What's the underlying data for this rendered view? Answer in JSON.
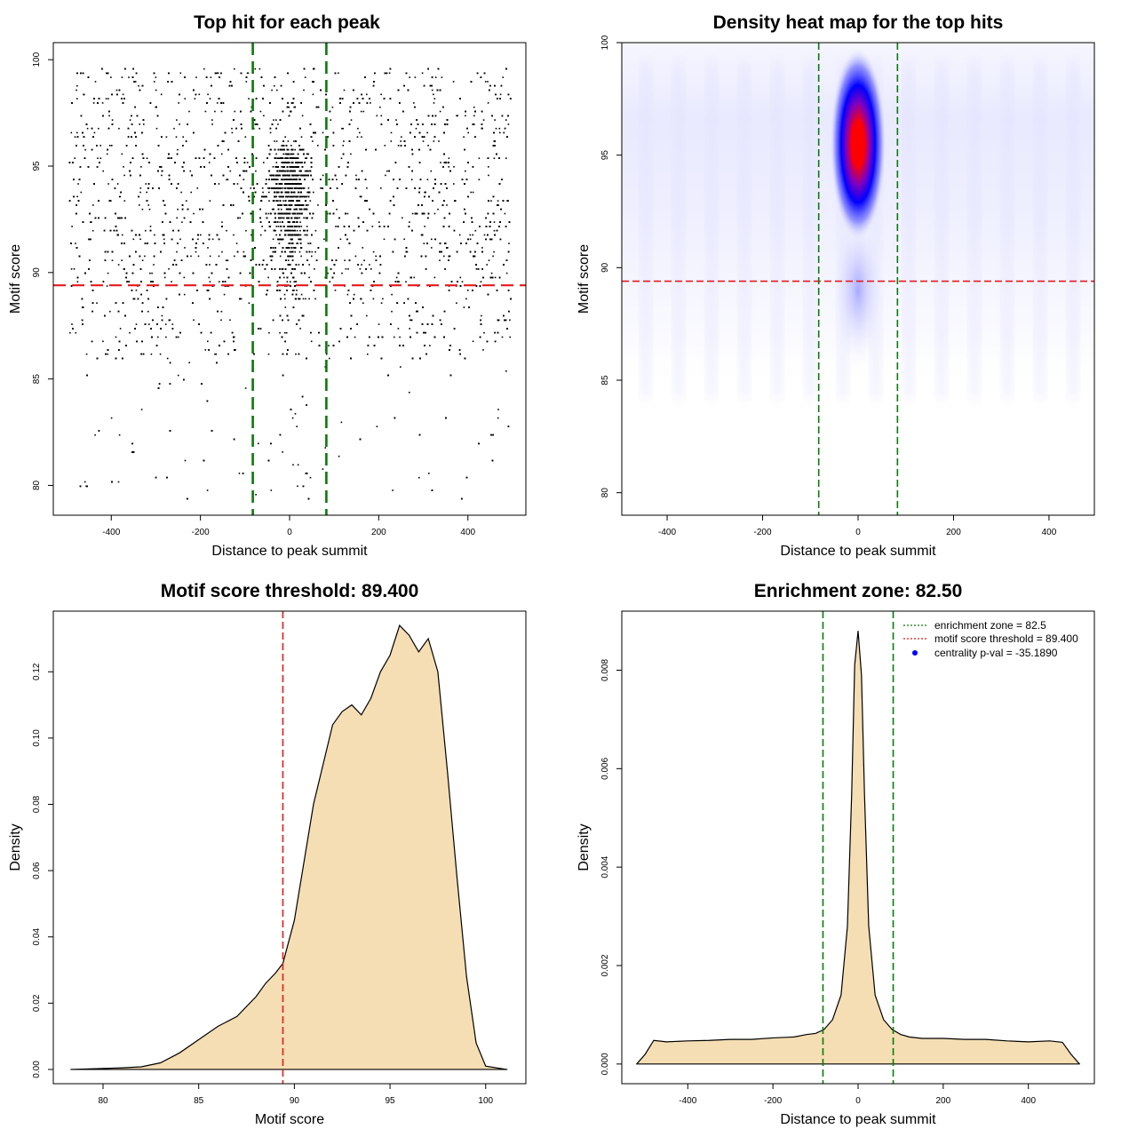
{
  "chart_data": [
    {
      "type": "scatter",
      "title": "Top hit for each peak",
      "xlabel": "Distance to peak summit",
      "ylabel": "Motif score",
      "xlim": [
        -530,
        530
      ],
      "ylim": [
        78.6,
        100.8
      ],
      "xticks": [
        -400,
        -200,
        0,
        200,
        400
      ],
      "yticks": [
        80,
        85,
        90,
        95,
        100
      ],
      "hlines": [
        {
          "y": 89.4,
          "color": "#e41a1c",
          "style": "dashed",
          "name": "motif score threshold"
        }
      ],
      "vlines": [
        {
          "x": -82.5,
          "color": "#0a7a0a",
          "style": "dashed"
        },
        {
          "x": 82.5,
          "color": "#0a7a0a",
          "style": "dashed"
        }
      ],
      "point_color": "#000000",
      "point_count_approx": 10000,
      "distribution": {
        "x_range": [
          -495,
          495
        ],
        "central_cluster_x_sd": 30,
        "score_peak": 95.5,
        "score_range": [
          79.3,
          100
        ]
      }
    },
    {
      "type": "heatmap",
      "title": "Density heat map for the top hits",
      "xlabel": "Distance to peak summit",
      "ylabel": "Motif score",
      "xlim": [
        -495,
        495
      ],
      "ylim": [
        79,
        100
      ],
      "xticks": [
        -400,
        -200,
        0,
        200,
        400
      ],
      "yticks": [
        80,
        85,
        90,
        95,
        100
      ],
      "colormap": [
        "#ffffff",
        "#0000ff",
        "#ff0000"
      ],
      "hot_spot": {
        "x": 0,
        "y": 95.5
      },
      "hlines": [
        {
          "y": 89.4,
          "color": "#e41a1c",
          "style": "dashed"
        }
      ],
      "vlines": [
        {
          "x": -82.5,
          "color": "#0a7a0a",
          "style": "dashed"
        },
        {
          "x": 82.5,
          "color": "#0a7a0a",
          "style": "dashed"
        }
      ]
    },
    {
      "type": "area",
      "title": "Motif score threshold: 89.400",
      "xlabel": "Motif score",
      "ylabel": "Density",
      "xlim": [
        77.4,
        102.1
      ],
      "ylim": [
        -0.0043,
        0.1383
      ],
      "xticks": [
        80,
        85,
        90,
        95,
        100
      ],
      "yticks": [
        0,
        0.02,
        0.04,
        0.06,
        0.08,
        0.1,
        0.12
      ],
      "ytick_labels": [
        "0.00",
        "0.02",
        "0.04",
        "0.06",
        "0.08",
        "0.10",
        "0.12"
      ],
      "fill": "#f5deb3",
      "x": [
        78.3,
        80,
        81,
        82,
        83,
        84,
        85,
        86,
        87,
        88,
        88.5,
        89,
        89.4,
        90,
        91,
        92,
        92.5,
        93,
        93.5,
        94,
        94.5,
        95,
        95.5,
        96,
        96.5,
        97,
        97.5,
        98,
        98.5,
        99,
        99.5,
        100,
        101.1
      ],
      "y": [
        0,
        0.0003,
        0.0005,
        0.0008,
        0.002,
        0.005,
        0.009,
        0.013,
        0.016,
        0.022,
        0.026,
        0.029,
        0.032,
        0.045,
        0.08,
        0.104,
        0.108,
        0.11,
        0.107,
        0.112,
        0.12,
        0.125,
        0.134,
        0.131,
        0.126,
        0.13,
        0.12,
        0.09,
        0.058,
        0.028,
        0.008,
        0.001,
        0
      ],
      "vlines": [
        {
          "x": 89.4,
          "color": "#e41a1c",
          "style": "dashed"
        }
      ]
    },
    {
      "type": "area",
      "title": "Enrichment zone: 82.50",
      "xlabel": "Distance to peak summit",
      "ylabel": "Density",
      "xlim": [
        -555,
        555
      ],
      "ylim": [
        -0.0004,
        0.0092
      ],
      "xticks": [
        -400,
        -200,
        0,
        200,
        400
      ],
      "yticks": [
        0,
        0.002,
        0.004,
        0.006,
        0.008
      ],
      "ytick_labels": [
        "0.000",
        "0.002",
        "0.004",
        "0.006",
        "0.008"
      ],
      "fill": "#f5deb3",
      "x": [
        -520,
        -500,
        -480,
        -450,
        -400,
        -350,
        -300,
        -250,
        -200,
        -150,
        -120,
        -100,
        -80,
        -60,
        -40,
        -25,
        -15,
        -8,
        0,
        8,
        15,
        25,
        40,
        60,
        80,
        100,
        120,
        150,
        200,
        250,
        300,
        350,
        400,
        450,
        480,
        500,
        520
      ],
      "y": [
        0,
        0.0002,
        0.00048,
        0.00045,
        0.00047,
        0.00048,
        0.0005,
        0.0005,
        0.00053,
        0.00055,
        0.0006,
        0.00062,
        0.0007,
        0.0009,
        0.0014,
        0.0028,
        0.0055,
        0.0081,
        0.0088,
        0.0079,
        0.0055,
        0.0028,
        0.0014,
        0.0009,
        0.0007,
        0.0006,
        0.00055,
        0.00052,
        0.00052,
        0.0005,
        0.0005,
        0.00047,
        0.00045,
        0.00047,
        0.00044,
        0.0002,
        0
      ],
      "vlines": [
        {
          "x": -82.5,
          "color": "#0a7a0a",
          "style": "dashed"
        },
        {
          "x": 82.5,
          "color": "#0a7a0a",
          "style": "dashed"
        }
      ],
      "legend": {
        "placement": "top-right",
        "entries": [
          {
            "label": "enrichment zone = 82.5",
            "color": "#0a7a0a",
            "symbol": "dotted-line"
          },
          {
            "label": "motif score threshold = 89.400",
            "color": "#e41a1c",
            "symbol": "dotted-line"
          },
          {
            "label": "centrality p-val = -35.1890",
            "color": "#0000ff",
            "symbol": "point"
          }
        ]
      }
    }
  ]
}
